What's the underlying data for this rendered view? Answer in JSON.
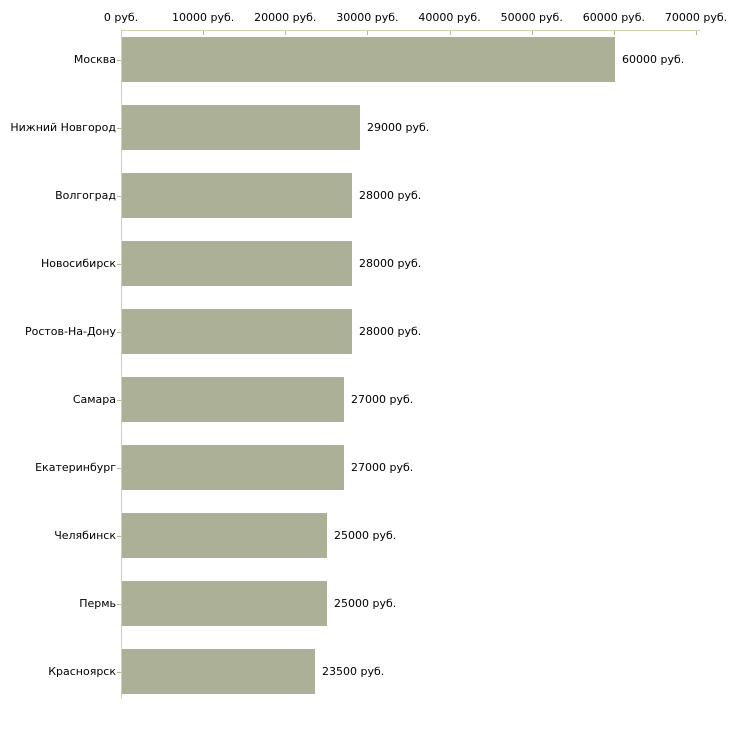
{
  "chart_data": {
    "type": "bar",
    "orientation": "horizontal",
    "title": "",
    "xlabel": "",
    "ylabel": "",
    "xlim": [
      0,
      70000
    ],
    "grid": false,
    "legend": false,
    "x_ticks": [
      {
        "value": 0,
        "label": "0 руб."
      },
      {
        "value": 10000,
        "label": "10000 руб."
      },
      {
        "value": 20000,
        "label": "20000 руб."
      },
      {
        "value": 30000,
        "label": "30000 руб."
      },
      {
        "value": 40000,
        "label": "40000 руб."
      },
      {
        "value": 50000,
        "label": "50000 руб."
      },
      {
        "value": 60000,
        "label": "60000 руб."
      },
      {
        "value": 70000,
        "label": "70000 руб."
      }
    ],
    "categories": [
      "Москва",
      "Нижний Новгород",
      "Волгоград",
      "Новосибирск",
      "Ростов-На-Дону",
      "Самара",
      "Екатеринбург",
      "Челябинск",
      "Пермь",
      "Красноярск"
    ],
    "values": [
      60000,
      29000,
      28000,
      28000,
      28000,
      27000,
      27000,
      25000,
      25000,
      23500
    ],
    "value_labels": [
      "60000 руб.",
      "29000 руб.",
      "28000 руб.",
      "28000 руб.",
      "28000 руб.",
      "27000 руб.",
      "27000 руб.",
      "25000 руб.",
      "25000 руб.",
      "23500 руб."
    ],
    "colors": {
      "bar": "#abb096",
      "axis_line": "#d2d2b0",
      "tick": "#b8b88c",
      "text": "#000000",
      "background": "#ffffff"
    }
  }
}
